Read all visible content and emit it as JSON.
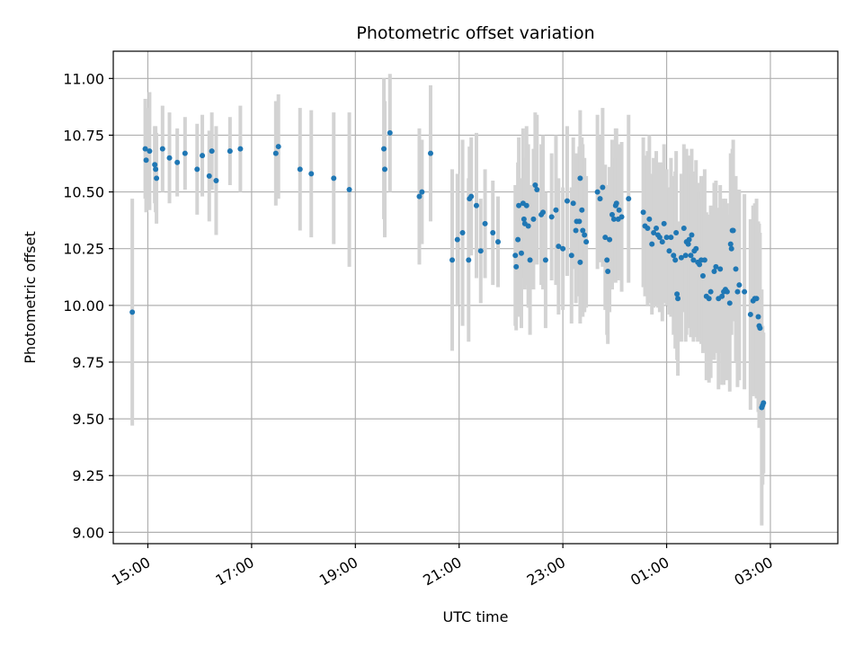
{
  "chart_data": {
    "type": "scatter",
    "title": "Photometric offset variation",
    "xlabel": "UTC time",
    "ylabel": "Photometric offset",
    "x_unit": "UTC time (day 1 from 14:00 through day 2 03:59)",
    "xlim": [
      "14:20",
      "04:18"
    ],
    "ylim": [
      8.95,
      11.12
    ],
    "xticks": [
      "15:00",
      "17:00",
      "19:00",
      "21:00",
      "23:00",
      "01:00",
      "03:00"
    ],
    "yticks": [
      "9.00",
      "9.25",
      "9.50",
      "9.75",
      "10.00",
      "10.25",
      "10.50",
      "10.75",
      "11.00"
    ],
    "grid": true,
    "colors": {
      "points": "#1f77b4",
      "errorbars": "#d3d3d3",
      "grid": "#b0b0b0"
    },
    "series": [
      {
        "points": [
          {
            "t": "14:42",
            "y": 9.97,
            "e": 0.5
          },
          {
            "t": "14:57",
            "y": 10.69,
            "e": 0.22
          },
          {
            "t": "14:58",
            "y": 10.64,
            "e": 0.23
          },
          {
            "t": "15:02",
            "y": 10.68,
            "e": 0.26
          },
          {
            "t": "15:08",
            "y": 10.62,
            "e": 0.17
          },
          {
            "t": "15:09",
            "y": 10.6,
            "e": 0.19
          },
          {
            "t": "15:10",
            "y": 10.56,
            "e": 0.2
          },
          {
            "t": "15:17",
            "y": 10.69,
            "e": 0.19
          },
          {
            "t": "15:25",
            "y": 10.65,
            "e": 0.2
          },
          {
            "t": "15:34",
            "y": 10.63,
            "e": 0.15
          },
          {
            "t": "15:43",
            "y": 10.67,
            "e": 0.16
          },
          {
            "t": "15:57",
            "y": 10.6,
            "e": 0.2
          },
          {
            "t": "16:03",
            "y": 10.66,
            "e": 0.18
          },
          {
            "t": "16:11",
            "y": 10.57,
            "e": 0.2
          },
          {
            "t": "16:14",
            "y": 10.68,
            "e": 0.17
          },
          {
            "t": "16:19",
            "y": 10.55,
            "e": 0.24
          },
          {
            "t": "16:35",
            "y": 10.68,
            "e": 0.15
          },
          {
            "t": "16:47",
            "y": 10.69,
            "e": 0.19
          },
          {
            "t": "17:28",
            "y": 10.67,
            "e": 0.23
          },
          {
            "t": "17:31",
            "y": 10.7,
            "e": 0.23
          },
          {
            "t": "17:56",
            "y": 10.6,
            "e": 0.27
          },
          {
            "t": "18:09",
            "y": 10.58,
            "e": 0.28
          },
          {
            "t": "18:35",
            "y": 10.56,
            "e": 0.29
          },
          {
            "t": "18:53",
            "y": 10.51,
            "e": 0.34
          },
          {
            "t": "19:33",
            "y": 10.69,
            "e": 0.31
          },
          {
            "t": "19:34",
            "y": 10.6,
            "e": 0.3
          },
          {
            "t": "19:40",
            "y": 10.76,
            "e": 0.26
          },
          {
            "t": "20:14",
            "y": 10.48,
            "e": 0.3
          },
          {
            "t": "20:17",
            "y": 10.5,
            "e": 0.23
          },
          {
            "t": "20:27",
            "y": 10.67,
            "e": 0.3
          },
          {
            "t": "20:52",
            "y": 10.2,
            "e": 0.4
          },
          {
            "t": "20:58",
            "y": 10.29,
            "e": 0.29
          },
          {
            "t": "21:04",
            "y": 10.32,
            "e": 0.41
          },
          {
            "t": "21:11",
            "y": 10.2,
            "e": 0.36
          },
          {
            "t": "21:12",
            "y": 10.47,
            "e": 0.23
          },
          {
            "t": "21:14",
            "y": 10.48,
            "e": 0.26
          },
          {
            "t": "21:20",
            "y": 10.44,
            "e": 0.32
          },
          {
            "t": "21:25",
            "y": 10.24,
            "e": 0.23
          },
          {
            "t": "21:30",
            "y": 10.36,
            "e": 0.24
          },
          {
            "t": "21:39",
            "y": 10.32,
            "e": 0.23
          },
          {
            "t": "21:45",
            "y": 10.28,
            "e": 0.2
          },
          {
            "t": "22:05",
            "y": 10.22,
            "e": 0.31
          },
          {
            "t": "22:06",
            "y": 10.17,
            "e": 0.28
          },
          {
            "t": "22:08",
            "y": 10.29,
            "e": 0.34
          },
          {
            "t": "22:09",
            "y": 10.44,
            "e": 0.3
          },
          {
            "t": "22:12",
            "y": 10.23,
            "e": 0.33
          },
          {
            "t": "22:14",
            "y": 10.45,
            "e": 0.33
          },
          {
            "t": "22:15",
            "y": 10.38,
            "e": 0.25
          },
          {
            "t": "22:16",
            "y": 10.36,
            "e": 0.29
          },
          {
            "t": "22:18",
            "y": 10.44,
            "e": 0.35
          },
          {
            "t": "22:20",
            "y": 10.35,
            "e": 0.36
          },
          {
            "t": "22:22",
            "y": 10.2,
            "e": 0.33
          },
          {
            "t": "22:26",
            "y": 10.38,
            "e": 0.31
          },
          {
            "t": "22:28",
            "y": 10.53,
            "e": 0.32
          },
          {
            "t": "22:30",
            "y": 10.51,
            "e": 0.33
          },
          {
            "t": "22:35",
            "y": 10.4,
            "e": 0.31
          },
          {
            "t": "22:37",
            "y": 10.41,
            "e": 0.34
          },
          {
            "t": "22:40",
            "y": 10.2,
            "e": 0.3
          },
          {
            "t": "22:47",
            "y": 10.39,
            "e": 0.28
          },
          {
            "t": "22:52",
            "y": 10.42,
            "e": 0.33
          },
          {
            "t": "22:55",
            "y": 10.26,
            "e": 0.3
          },
          {
            "t": "23:00",
            "y": 10.25,
            "e": 0.27
          },
          {
            "t": "23:05",
            "y": 10.46,
            "e": 0.33
          },
          {
            "t": "23:10",
            "y": 10.22,
            "e": 0.3
          },
          {
            "t": "23:12",
            "y": 10.45,
            "e": 0.29
          },
          {
            "t": "23:15",
            "y": 10.33,
            "e": 0.32
          },
          {
            "t": "23:16",
            "y": 10.37,
            "e": 0.3
          },
          {
            "t": "23:19",
            "y": 10.37,
            "e": 0.33
          },
          {
            "t": "23:20",
            "y": 10.19,
            "e": 0.27
          },
          {
            "t": "23:20",
            "y": 10.56,
            "e": 0.3
          },
          {
            "t": "23:22",
            "y": 10.42,
            "e": 0.32
          },
          {
            "t": "23:23",
            "y": 10.33,
            "e": 0.38
          },
          {
            "t": "23:25",
            "y": 10.31,
            "e": 0.34
          },
          {
            "t": "23:27",
            "y": 10.28,
            "e": 0.29
          },
          {
            "t": "23:40",
            "y": 10.5,
            "e": 0.34
          },
          {
            "t": "23:43",
            "y": 10.47,
            "e": 0.28
          },
          {
            "t": "23:46",
            "y": 10.52,
            "e": 0.35
          },
          {
            "t": "23:49",
            "y": 10.3,
            "e": 0.32
          },
          {
            "t": "23:51",
            "y": 10.2,
            "e": 0.33
          },
          {
            "t": "23:52",
            "y": 10.15,
            "e": 0.32
          },
          {
            "t": "23:54",
            "y": 10.29,
            "e": 0.32
          },
          {
            "t": "23:57",
            "y": 10.4,
            "e": 0.33
          },
          {
            "t": "23:59",
            "y": 10.38,
            "e": 0.27
          },
          {
            "t": "00:01",
            "y": 10.44,
            "e": 0.34
          },
          {
            "t": "00:02",
            "y": 10.45,
            "e": 0.33
          },
          {
            "t": "00:04",
            "y": 10.38,
            "e": 0.27
          },
          {
            "t": "00:05",
            "y": 10.42,
            "e": 0.29
          },
          {
            "t": "00:08",
            "y": 10.39,
            "e": 0.33
          },
          {
            "t": "00:16",
            "y": 10.47,
            "e": 0.37
          },
          {
            "t": "00:33",
            "y": 10.41,
            "e": 0.33
          },
          {
            "t": "00:35",
            "y": 10.35,
            "e": 0.31
          },
          {
            "t": "00:38",
            "y": 10.34,
            "e": 0.34
          },
          {
            "t": "00:40",
            "y": 10.38,
            "e": 0.37
          },
          {
            "t": "00:43",
            "y": 10.27,
            "e": 0.31
          },
          {
            "t": "00:45",
            "y": 10.32,
            "e": 0.33
          },
          {
            "t": "00:48",
            "y": 10.34,
            "e": 0.34
          },
          {
            "t": "00:50",
            "y": 10.31,
            "e": 0.32
          },
          {
            "t": "00:52",
            "y": 10.3,
            "e": 0.33
          },
          {
            "t": "00:55",
            "y": 10.28,
            "e": 0.35
          },
          {
            "t": "00:57",
            "y": 10.36,
            "e": 0.35
          },
          {
            "t": "01:00",
            "y": 10.3,
            "e": 0.3
          },
          {
            "t": "01:03",
            "y": 10.24,
            "e": 0.28
          },
          {
            "t": "01:05",
            "y": 10.3,
            "e": 0.35
          },
          {
            "t": "01:08",
            "y": 10.22,
            "e": 0.35
          },
          {
            "t": "01:10",
            "y": 10.2,
            "e": 0.39
          },
          {
            "t": "01:11",
            "y": 10.32,
            "e": 0.36
          },
          {
            "t": "01:12",
            "y": 10.05,
            "e": 0.29
          },
          {
            "t": "01:13",
            "y": 10.03,
            "e": 0.34
          },
          {
            "t": "01:17",
            "y": 10.21,
            "e": 0.37
          },
          {
            "t": "01:20",
            "y": 10.34,
            "e": 0.37
          },
          {
            "t": "01:22",
            "y": 10.22,
            "e": 0.38
          },
          {
            "t": "01:23",
            "y": 10.28,
            "e": 0.41
          },
          {
            "t": "01:25",
            "y": 10.27,
            "e": 0.37
          },
          {
            "t": "01:26",
            "y": 10.29,
            "e": 0.37
          },
          {
            "t": "01:28",
            "y": 10.22,
            "e": 0.36
          },
          {
            "t": "01:29",
            "y": 10.31,
            "e": 0.38
          },
          {
            "t": "01:31",
            "y": 10.2,
            "e": 0.36
          },
          {
            "t": "01:32",
            "y": 10.24,
            "e": 0.35
          },
          {
            "t": "01:34",
            "y": 10.25,
            "e": 0.39
          },
          {
            "t": "01:36",
            "y": 10.19,
            "e": 0.35
          },
          {
            "t": "01:38",
            "y": 10.18,
            "e": 0.32
          },
          {
            "t": "01:40",
            "y": 10.2,
            "e": 0.37
          },
          {
            "t": "01:42",
            "y": 10.13,
            "e": 0.34
          },
          {
            "t": "01:44",
            "y": 10.2,
            "e": 0.4
          },
          {
            "t": "01:46",
            "y": 10.04,
            "e": 0.37
          },
          {
            "t": "01:49",
            "y": 10.03,
            "e": 0.37
          },
          {
            "t": "01:51",
            "y": 10.06,
            "e": 0.38
          },
          {
            "t": "01:55",
            "y": 10.15,
            "e": 0.39
          },
          {
            "t": "01:57",
            "y": 10.17,
            "e": 0.38
          },
          {
            "t": "02:00",
            "y": 10.03,
            "e": 0.4
          },
          {
            "t": "02:02",
            "y": 10.16,
            "e": 0.37
          },
          {
            "t": "02:04",
            "y": 10.04,
            "e": 0.39
          },
          {
            "t": "02:06",
            "y": 10.06,
            "e": 0.41
          },
          {
            "t": "02:08",
            "y": 10.07,
            "e": 0.4
          },
          {
            "t": "02:10",
            "y": 10.06,
            "e": 0.39
          },
          {
            "t": "02:13",
            "y": 10.01,
            "e": 0.39
          },
          {
            "t": "02:14",
            "y": 10.27,
            "e": 0.4
          },
          {
            "t": "02:15",
            "y": 10.25,
            "e": 0.38
          },
          {
            "t": "02:16",
            "y": 10.33,
            "e": 0.36
          },
          {
            "t": "02:17",
            "y": 10.33,
            "e": 0.4
          },
          {
            "t": "02:20",
            "y": 10.16,
            "e": 0.41
          },
          {
            "t": "02:22",
            "y": 10.06,
            "e": 0.42
          },
          {
            "t": "02:24",
            "y": 10.09,
            "e": 0.42
          },
          {
            "t": "02:30",
            "y": 10.06,
            "e": 0.43
          },
          {
            "t": "02:37",
            "y": 9.96,
            "e": 0.42
          },
          {
            "t": "02:40",
            "y": 10.02,
            "e": 0.42
          },
          {
            "t": "02:42",
            "y": 10.03,
            "e": 0.42
          },
          {
            "t": "02:44",
            "y": 10.03,
            "e": 0.44
          },
          {
            "t": "02:46",
            "y": 9.95,
            "e": 0.42
          },
          {
            "t": "02:47",
            "y": 9.91,
            "e": 0.45
          },
          {
            "t": "02:48",
            "y": 9.9,
            "e": 0.42
          },
          {
            "t": "02:50",
            "y": 9.55,
            "e": 0.52
          },
          {
            "t": "02:51",
            "y": 9.56,
            "e": 0.35
          },
          {
            "t": "02:52",
            "y": 9.57,
            "e": 0.31
          }
        ]
      }
    ]
  }
}
